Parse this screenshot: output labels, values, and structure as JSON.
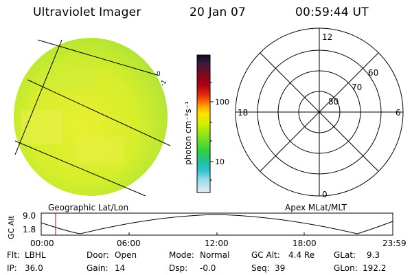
{
  "header": {
    "instrument": "Ultraviolet Imager",
    "date": "20 Jan 07",
    "time": "00:59:44 UT"
  },
  "colorbar": {
    "unit_label": "photon cm⁻²s⁻¹",
    "ticks": [
      "100",
      "10"
    ],
    "colors": [
      "#0b0b20",
      "#3a1a40",
      "#7a0a1a",
      "#b00015",
      "#dd2010",
      "#ff6a00",
      "#ffb000",
      "#ffe000",
      "#d0f000",
      "#80e020",
      "#30d040",
      "#20c0a0",
      "#30c0d0",
      "#90d8e8",
      "#d8e8f0"
    ]
  },
  "uv_image": {
    "projection_label": "Geographic Lat/Lon",
    "grid_label_1": "0",
    "grid_label_2": "-1"
  },
  "polar_plot": {
    "projection_label": "Apex MLat/MLT",
    "mlt_labels": {
      "top": "12",
      "left": "18",
      "right": "6",
      "bottom": "0"
    },
    "lat_labels": [
      "60",
      "70",
      "80"
    ]
  },
  "altitude_strip": {
    "axis_label": "GC Alt",
    "y_ticks": [
      "9.0",
      "1.8"
    ],
    "x_ticks": [
      "00:00",
      "06:00",
      "12:00",
      "18:00",
      "23:59"
    ],
    "current_time_marker_color": "#cc0000"
  },
  "status": {
    "flt_label": "Flt:",
    "flt_value": "LBHL",
    "ip_label": "IP:",
    "ip_value": "36.0",
    "door_label": "Door:",
    "door_value": "Open",
    "gain_label": "Gain:",
    "gain_value": "14",
    "mode_label": "Mode:",
    "mode_value": "Normal",
    "dsp_label": "Dsp:",
    "dsp_value": "-0.0",
    "gcalt_label": "GC Alt:",
    "gcalt_value": "4.4 Re",
    "seq_label": "Seq:",
    "seq_value": "39",
    "glat_label": "GLat:",
    "glat_value": "9.3",
    "glon_label": "GLon:",
    "glon_value": "192.2"
  }
}
